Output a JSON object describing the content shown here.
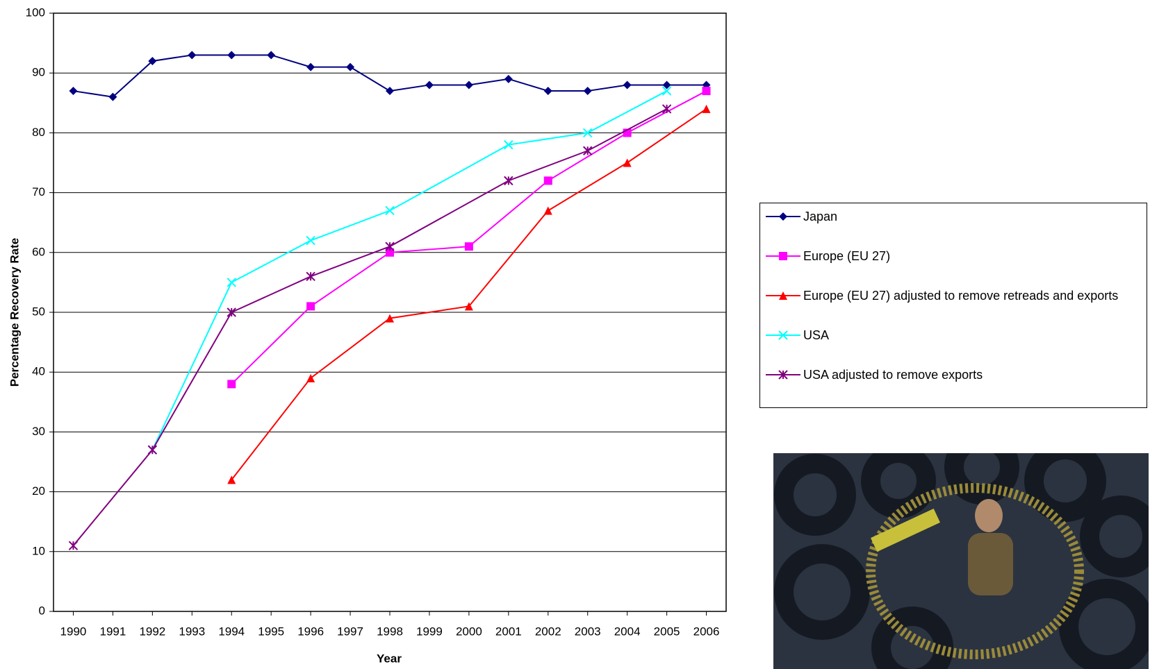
{
  "chart_data": {
    "type": "line",
    "y_label": "Percentage Recovery Rate",
    "x_label": "Year",
    "xlim": [
      1989.5,
      2006.5
    ],
    "xticks": [
      1990,
      1991,
      1992,
      1993,
      1994,
      1995,
      1996,
      1997,
      1998,
      1999,
      2000,
      2001,
      2002,
      2003,
      2004,
      2005,
      2006
    ],
    "ylim": [
      0,
      100
    ],
    "yticks": [
      0,
      10,
      20,
      30,
      40,
      50,
      60,
      70,
      80,
      90,
      100
    ],
    "grid": true,
    "legend": "right",
    "series": [
      {
        "name": "Japan",
        "color": "#000080",
        "marker": "diamond",
        "x": [
          1990,
          1991,
          1992,
          1993,
          1994,
          1995,
          1996,
          1997,
          1998,
          1999,
          2000,
          2001,
          2002,
          2003,
          2004,
          2005,
          2006
        ],
        "values": [
          87,
          86,
          92,
          93,
          93,
          93,
          91,
          91,
          87,
          88,
          88,
          89,
          87,
          87,
          88,
          88,
          88
        ]
      },
      {
        "name": "Europe (EU 27)",
        "color": "#ff00ff",
        "marker": "square",
        "x": [
          1994,
          1996,
          1998,
          2000,
          2002,
          2004,
          2006
        ],
        "values": [
          38,
          51,
          60,
          61,
          72,
          80,
          87
        ]
      },
      {
        "name": "Europe (EU 27) adjusted to remove retreads and exports",
        "color": "#ff0000",
        "marker": "triangle",
        "x": [
          1994,
          1996,
          1998,
          2000,
          2002,
          2004,
          2006
        ],
        "values": [
          22,
          39,
          49,
          51,
          67,
          75,
          84
        ]
      },
      {
        "name": "USA",
        "color": "#00ffff",
        "marker": "x",
        "x": [
          1992,
          1994,
          1996,
          1998,
          2001,
          2003,
          2005
        ],
        "values": [
          27,
          55,
          62,
          67,
          78,
          80,
          87
        ]
      },
      {
        "name": "USA adjusted to remove exports",
        "color": "#800080",
        "marker": "star",
        "x": [
          1990,
          1992,
          1994,
          1996,
          1998,
          2001,
          2003,
          2005
        ],
        "values": [
          11,
          27,
          50,
          56,
          61,
          72,
          77,
          84
        ]
      }
    ]
  }
}
